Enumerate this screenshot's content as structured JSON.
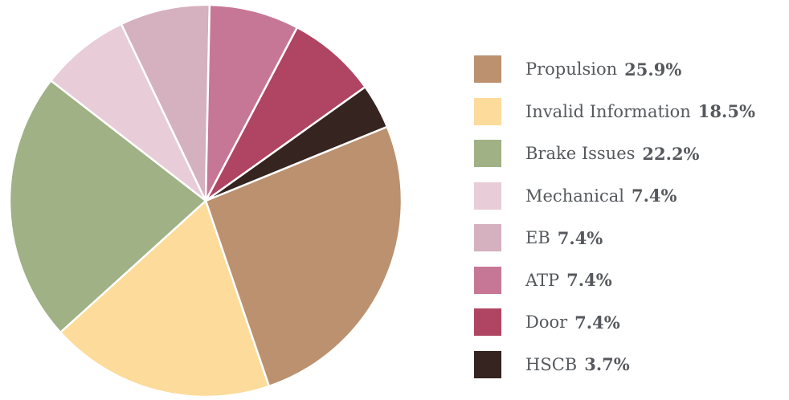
{
  "chart_data": {
    "type": "pie",
    "slices": [
      {
        "label": "Propulsion",
        "value": 25.9,
        "display": "25.9%",
        "color": "#bb916f"
      },
      {
        "label": "Invalid Information",
        "value": 18.5,
        "display": "18.5%",
        "color": "#fddb9a"
      },
      {
        "label": "Brake Issues",
        "value": 22.2,
        "display": "22.2%",
        "color": "#9fb185"
      },
      {
        "label": "Mechanical",
        "value": 7.4,
        "display": "7.4%",
        "color": "#e8cdd9"
      },
      {
        "label": "EB",
        "value": 7.4,
        "display": "7.4%",
        "color": "#d5b0bf"
      },
      {
        "label": "ATP",
        "value": 7.4,
        "display": "7.4%",
        "color": "#c77796"
      },
      {
        "label": "Door",
        "value": 7.4,
        "display": "7.4%",
        "color": "#b04463"
      },
      {
        "label": "HSCB",
        "value": 3.7,
        "display": "3.7%",
        "color": "#35241f"
      }
    ],
    "legend_position": "right",
    "slice_order": "clockwise from top, ending with HSCB"
  }
}
